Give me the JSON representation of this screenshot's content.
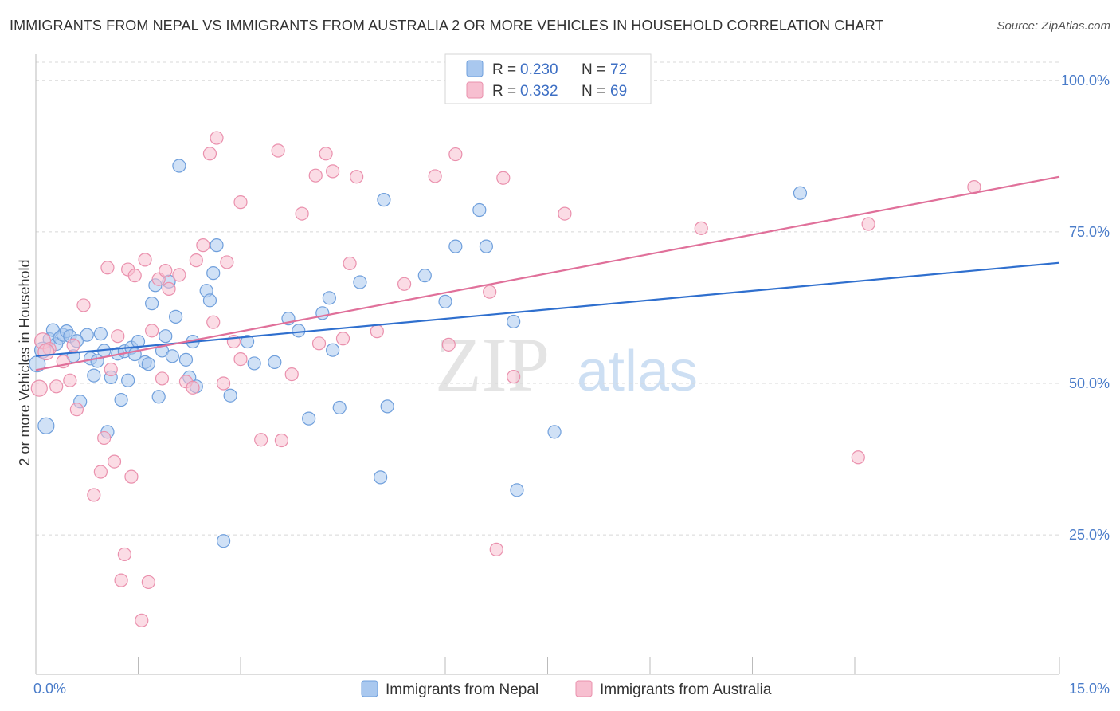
{
  "title": "IMMIGRANTS FROM NEPAL VS IMMIGRANTS FROM AUSTRALIA 2 OR MORE VEHICLES IN HOUSEHOLD CORRELATION CHART",
  "source": "Source: ZipAtlas.com",
  "watermark": {
    "zip": "ZIP",
    "atlas": "atlas"
  },
  "colors": {
    "nepal_fill": "#a9c8ef",
    "nepal_stroke": "#6f9fdc",
    "nepal_line": "#2f6fce",
    "australia_fill": "#f7bfd0",
    "australia_stroke": "#ea90ad",
    "australia_line": "#e0709a",
    "tick_label": "#4a7cc9",
    "grid": "#d8d8d8"
  },
  "legend": {
    "rows": [
      {
        "r_label": "R =",
        "r_value": "0.230",
        "n_label": "N =",
        "n_value": "72"
      },
      {
        "r_label": "R =",
        "r_value": "0.332",
        "n_label": "N =",
        "n_value": "69"
      }
    ]
  },
  "chart_data": {
    "type": "scatter",
    "xlabel": "",
    "ylabel": "2 or more Vehicles in Household",
    "xlim": [
      0,
      15
    ],
    "ylim": [
      2,
      103
    ],
    "x_tick_labels": [
      "0.0%",
      "15.0%"
    ],
    "y_ticks": [
      25,
      50,
      75,
      100
    ],
    "y_tick_labels": [
      "25.0%",
      "50.0%",
      "75.0%",
      "100.0%"
    ],
    "grid": true,
    "legend_position": "top-center",
    "series": [
      {
        "name": "Immigrants from Nepal",
        "r": 0.23,
        "n": 72,
        "trend": {
          "x0": 0,
          "y0": 54.5,
          "x1": 15,
          "y1": 69.9
        },
        "points": [
          [
            0.02,
            53.2
          ],
          [
            0.15,
            43.0
          ],
          [
            0.2,
            57.3
          ],
          [
            0.25,
            58.8
          ],
          [
            0.3,
            56.5
          ],
          [
            0.35,
            57.5
          ],
          [
            0.4,
            58.0
          ],
          [
            0.45,
            58.6
          ],
          [
            0.5,
            57.8
          ],
          [
            0.55,
            54.5
          ],
          [
            0.65,
            47.0
          ],
          [
            0.75,
            58.0
          ],
          [
            0.8,
            54.1
          ],
          [
            0.85,
            51.3
          ],
          [
            0.9,
            53.7
          ],
          [
            0.95,
            58.2
          ],
          [
            1.0,
            55.4
          ],
          [
            1.05,
            42.0
          ],
          [
            1.1,
            51.0
          ],
          [
            1.2,
            54.9
          ],
          [
            1.25,
            47.3
          ],
          [
            1.3,
            55.3
          ],
          [
            1.35,
            50.5
          ],
          [
            1.4,
            55.9
          ],
          [
            1.45,
            54.8
          ],
          [
            1.5,
            56.9
          ],
          [
            1.6,
            53.5
          ],
          [
            1.65,
            53.2
          ],
          [
            1.7,
            63.2
          ],
          [
            1.75,
            66.2
          ],
          [
            1.8,
            47.8
          ],
          [
            1.85,
            55.4
          ],
          [
            1.9,
            57.8
          ],
          [
            1.95,
            66.8
          ],
          [
            2.0,
            54.5
          ],
          [
            2.05,
            61.0
          ],
          [
            2.1,
            85.9
          ],
          [
            2.2,
            53.9
          ],
          [
            2.25,
            51.0
          ],
          [
            2.3,
            56.9
          ],
          [
            2.35,
            49.5
          ],
          [
            2.5,
            65.3
          ],
          [
            2.55,
            63.7
          ],
          [
            2.6,
            68.2
          ],
          [
            2.65,
            72.8
          ],
          [
            2.75,
            24.0
          ],
          [
            2.85,
            48.0
          ],
          [
            3.1,
            56.9
          ],
          [
            3.2,
            53.3
          ],
          [
            3.5,
            53.5
          ],
          [
            3.7,
            60.7
          ],
          [
            3.85,
            58.7
          ],
          [
            4.0,
            44.2
          ],
          [
            4.2,
            61.6
          ],
          [
            4.3,
            64.1
          ],
          [
            4.35,
            55.5
          ],
          [
            4.45,
            46.0
          ],
          [
            4.75,
            66.7
          ],
          [
            5.05,
            34.5
          ],
          [
            5.1,
            80.3
          ],
          [
            5.15,
            46.2
          ],
          [
            5.7,
            67.8
          ],
          [
            6.0,
            63.5
          ],
          [
            6.15,
            72.6
          ],
          [
            6.5,
            78.6
          ],
          [
            6.6,
            72.6
          ],
          [
            7.0,
            60.2
          ],
          [
            7.05,
            32.4
          ],
          [
            7.6,
            42.0
          ],
          [
            11.2,
            81.4
          ],
          [
            0.1,
            55.5
          ],
          [
            0.6,
            57.0
          ]
        ]
      },
      {
        "name": "Immigrants from Australia",
        "r": 0.332,
        "n": 69,
        "trend": {
          "x0": 0,
          "y0": 52.2,
          "x1": 15,
          "y1": 84.1
        },
        "points": [
          [
            0.05,
            49.2
          ],
          [
            0.1,
            57.0
          ],
          [
            0.2,
            55.7
          ],
          [
            0.3,
            49.5
          ],
          [
            0.4,
            53.6
          ],
          [
            0.5,
            50.5
          ],
          [
            0.55,
            56.3
          ],
          [
            0.6,
            45.7
          ],
          [
            0.7,
            62.9
          ],
          [
            0.85,
            31.6
          ],
          [
            0.95,
            35.4
          ],
          [
            1.0,
            41.0
          ],
          [
            1.05,
            69.1
          ],
          [
            1.1,
            52.3
          ],
          [
            1.15,
            37.1
          ],
          [
            1.2,
            57.8
          ],
          [
            1.25,
            17.5
          ],
          [
            1.3,
            21.8
          ],
          [
            1.35,
            68.8
          ],
          [
            1.4,
            34.6
          ],
          [
            1.45,
            67.8
          ],
          [
            1.55,
            10.9
          ],
          [
            1.6,
            70.4
          ],
          [
            1.65,
            17.2
          ],
          [
            1.7,
            58.7
          ],
          [
            1.8,
            67.2
          ],
          [
            1.85,
            50.8
          ],
          [
            1.9,
            68.6
          ],
          [
            1.95,
            65.6
          ],
          [
            2.1,
            67.9
          ],
          [
            2.2,
            50.3
          ],
          [
            2.3,
            49.3
          ],
          [
            2.35,
            70.3
          ],
          [
            2.45,
            72.8
          ],
          [
            2.55,
            87.9
          ],
          [
            2.6,
            60.1
          ],
          [
            2.65,
            90.5
          ],
          [
            2.75,
            50.0
          ],
          [
            2.8,
            70.0
          ],
          [
            2.9,
            56.9
          ],
          [
            3.0,
            54.0
          ],
          [
            3.0,
            79.9
          ],
          [
            3.3,
            40.7
          ],
          [
            3.55,
            88.4
          ],
          [
            3.6,
            40.6
          ],
          [
            3.75,
            51.5
          ],
          [
            3.9,
            78.0
          ],
          [
            4.1,
            84.3
          ],
          [
            4.15,
            56.6
          ],
          [
            4.25,
            87.9
          ],
          [
            4.35,
            85.0
          ],
          [
            4.5,
            57.4
          ],
          [
            4.6,
            69.8
          ],
          [
            4.7,
            84.1
          ],
          [
            5.0,
            58.6
          ],
          [
            5.4,
            66.4
          ],
          [
            5.85,
            84.2
          ],
          [
            6.05,
            56.4
          ],
          [
            6.15,
            87.8
          ],
          [
            6.65,
            65.1
          ],
          [
            6.75,
            22.6
          ],
          [
            6.85,
            83.9
          ],
          [
            7.0,
            51.1
          ],
          [
            7.75,
            78.0
          ],
          [
            9.75,
            75.6
          ],
          [
            12.05,
            37.8
          ],
          [
            12.2,
            76.3
          ],
          [
            13.75,
            82.4
          ],
          [
            0.15,
            55.2
          ]
        ]
      }
    ]
  }
}
